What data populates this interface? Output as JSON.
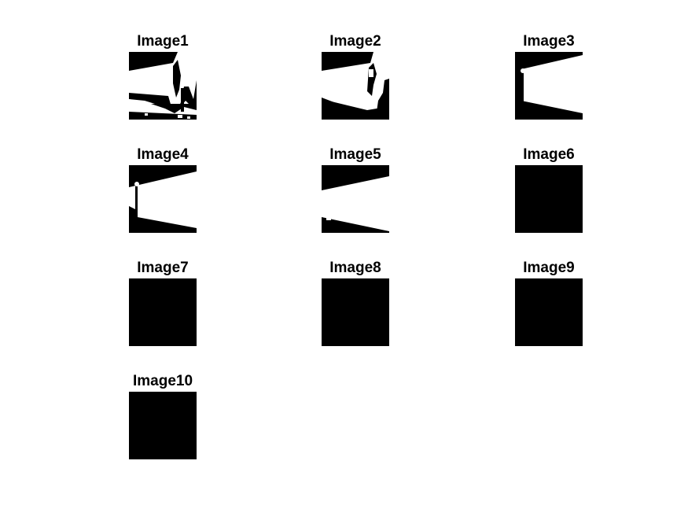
{
  "figure": {
    "panels": [
      {
        "title": "Image1"
      },
      {
        "title": "Image2"
      },
      {
        "title": "Image3"
      },
      {
        "title": "Image4"
      },
      {
        "title": "Image5"
      },
      {
        "title": "Image6"
      },
      {
        "title": "Image7"
      },
      {
        "title": "Image8"
      },
      {
        "title": "Image9"
      },
      {
        "title": "Image10"
      }
    ],
    "colors": {
      "background": "#ffffff",
      "foreground": "#000000",
      "mask": "#ffffff"
    }
  }
}
